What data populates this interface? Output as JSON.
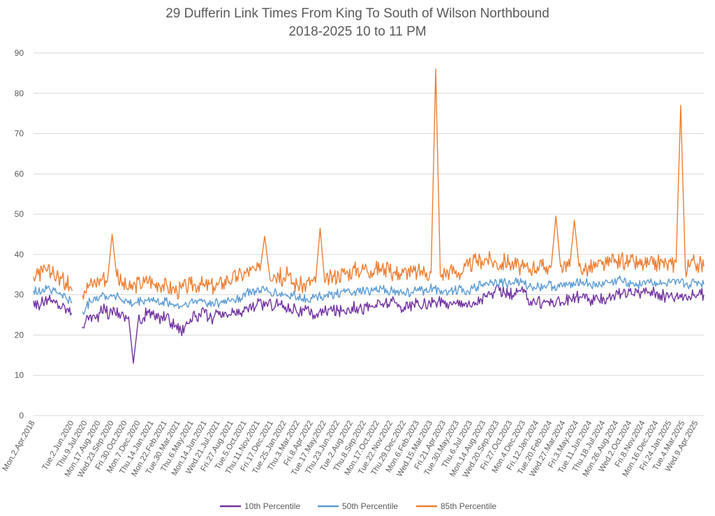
{
  "chart_data": {
    "type": "line",
    "title": "29 Dufferin Link Times From King To South of Wilson Northbound",
    "subtitle": "2018-2025 10 to 11 PM",
    "xlabel": "",
    "ylabel": "",
    "ylim": [
      0,
      90
    ],
    "yticks": [
      0,
      10,
      20,
      30,
      40,
      50,
      60,
      70,
      80,
      90
    ],
    "grid": true,
    "legend": "bottom",
    "x_tick_labels": [
      "Mon.2.Apr.2018",
      "Tue.2.Jun.2020",
      "Thu.9.Jul.2020",
      "Mon.17.Aug.2020",
      "Wed.23.Sep.2020",
      "Fri.30.Oct.2020",
      "Mon.7.Dec.2020",
      "Thu.14.Jan.2021",
      "Mon.22.Feb.2021",
      "Tue.30.Mar.2021",
      "Thu.6.May.2021",
      "Mon.14.Jun.2021",
      "Wed.21.Jul.2021",
      "Fri.27.Aug.2021",
      "Tue.5.Oct.2021",
      "Thu.11.Nov.2021",
      "Fri.17.Dec.2021",
      "Tue.25.Jan.2022",
      "Thu.3.Mar.2022",
      "Fri.8.Apr.2022",
      "Tue.17.May.2022",
      "Thu.23.Jun.2022",
      "Tue.2.Aug.2022",
      "Thu.8.Sep.2022",
      "Mon.17.Oct.2022",
      "Tue.22.Nov.2022",
      "Thu.29.Dec.2022",
      "Mon.6.Feb.2023",
      "Wed.15.Mar.2023",
      "Fri.21.Apr.2023",
      "Tue.30.May.2023",
      "Thu.6.Jul.2023",
      "Mon.14.Aug.2023",
      "Wed.20.Sep.2023",
      "Fri.27.Oct.2023",
      "Mon.4.Dec.2023",
      "Fri.12.Jan.2024",
      "Tue.20.Feb.2024",
      "Wed.27.Mar.2024",
      "Fri.3.May.2024",
      "Tue.11.Jun.2024",
      "Thu.18.Jul.2024",
      "Mon.26.Aug.2024",
      "Wed.2.Oct.2024",
      "Fri.8.Nov.2024",
      "Mon.16.Dec.2024",
      "Fri.24.Jan.2025",
      "Tue.4.Mar.2025",
      "Wed.9.Apr.2025"
    ],
    "series": [
      {
        "name": "10th Percentile",
        "color": "#7030a0",
        "values": [
          28.5,
          27.5,
          28,
          29,
          28,
          28,
          27,
          26.5,
          25.5,
          23,
          22.5,
          23.5,
          25,
          24,
          25.5,
          26.5,
          25,
          26.5,
          25.5,
          24.5,
          24.5,
          13,
          23.5,
          24,
          26,
          25,
          24,
          24.5,
          25,
          23,
          22.5,
          21,
          22.5,
          24,
          24.5,
          25,
          25.5,
          24,
          24.5,
          25,
          24.5,
          25,
          25.5,
          25,
          26,
          26.5,
          27,
          27.5,
          27.5,
          28,
          27.5,
          28,
          27.5,
          27,
          26.5,
          27,
          25.5,
          26,
          25.5,
          25,
          25.5,
          25.5,
          26.5,
          26,
          26,
          26,
          26.5,
          27,
          27,
          26.5,
          27,
          27,
          27.5,
          27.5,
          28,
          28,
          28,
          27,
          27,
          27,
          27.5,
          27.5,
          27.5,
          27.5,
          28,
          28,
          28,
          28,
          27.5,
          28,
          28.5,
          28,
          27,
          28,
          29,
          29.5,
          30,
          30.5,
          31,
          30.5,
          30.5,
          29.5,
          31,
          30.5,
          29,
          28.5,
          28.5,
          28,
          28.5,
          28,
          28.5,
          28,
          28.5,
          29,
          29.5,
          29.5,
          29,
          28.5,
          28.5,
          28.5,
          29,
          29.5,
          30,
          30,
          30.5,
          30,
          30,
          30.5,
          30.5,
          31,
          31,
          30.5,
          30,
          29.5,
          30,
          29.5,
          30,
          30,
          29.5,
          30,
          30.5,
          30
        ]
      },
      {
        "name": "50th Percentile",
        "color": "#5b9bd5",
        "values": [
          31,
          30.5,
          31.5,
          32,
          31,
          30.5,
          30,
          29,
          28,
          25.5,
          25,
          26.5,
          28.5,
          29.5,
          29.5,
          30,
          29.5,
          30,
          29.5,
          28.5,
          28,
          27.5,
          28,
          28.5,
          28.5,
          29,
          28,
          28,
          28.5,
          27.5,
          27.5,
          27,
          27.5,
          28,
          28,
          28.5,
          28.5,
          28,
          28,
          28,
          28,
          28.5,
          29,
          29,
          29,
          30.5,
          30.5,
          31,
          31,
          31,
          30.5,
          30.5,
          30,
          30,
          29.5,
          30,
          29.5,
          29,
          29,
          29,
          29.5,
          29.5,
          30,
          30,
          30.5,
          30.5,
          30.5,
          30.5,
          31,
          30.5,
          31,
          30.5,
          31,
          31,
          31.5,
          31,
          31,
          30.5,
          30.5,
          30.5,
          30.5,
          31,
          31,
          31,
          31.5,
          31.5,
          31,
          31,
          31,
          31,
          31.5,
          31.5,
          31,
          31.5,
          32,
          32.5,
          33,
          33,
          33.5,
          33,
          33,
          32.5,
          33.5,
          33,
          32.5,
          32,
          32,
          32,
          32,
          32.5,
          32,
          32,
          32,
          32.5,
          33,
          33.5,
          33,
          33,
          32.5,
          32,
          32.5,
          33,
          33,
          33,
          34,
          33,
          33,
          33,
          32.5,
          33,
          33.5,
          33,
          33,
          32.5,
          32.5,
          33,
          32.5,
          33,
          32.5,
          32.5,
          33,
          33,
          32.5
        ]
      },
      {
        "name": "85th Percentile",
        "color": "#ed7d31",
        "values": [
          34.5,
          35,
          35.5,
          36,
          35,
          34.5,
          34,
          33,
          32,
          30,
          31,
          31,
          32.5,
          33,
          33.5,
          34.5,
          33.5,
          45,
          34.5,
          33,
          32,
          31.5,
          32.5,
          33,
          33,
          34,
          32.5,
          33,
          32.5,
          32,
          31.5,
          31,
          31.5,
          32,
          32.5,
          32.5,
          33,
          32,
          32.5,
          32,
          32.5,
          33,
          34,
          34,
          34.5,
          35,
          35.5,
          36,
          36,
          36,
          44.5,
          35.5,
          35,
          35,
          34,
          35,
          33,
          32.5,
          32.5,
          32.5,
          33.5,
          33,
          46.5,
          33,
          34,
          34.5,
          35,
          35.5,
          35.5,
          36,
          36.5,
          36,
          37,
          36,
          36.5,
          36.5,
          36.5,
          35.5,
          35.5,
          35.5,
          35.5,
          36,
          35.5,
          35.5,
          36,
          35.5,
          35.5,
          86,
          35,
          35.5,
          36,
          36,
          35.5,
          36,
          37,
          38,
          38.5,
          38.5,
          39,
          38.5,
          38,
          37.5,
          38.5,
          38,
          37.5,
          37,
          36.5,
          36.5,
          37,
          37,
          37,
          37,
          37,
          49.5,
          37,
          38,
          37,
          48.5,
          37,
          36.5,
          36.5,
          37,
          37,
          37.5,
          37.5,
          38,
          38,
          38.5,
          38,
          38,
          38,
          37.5,
          37.5,
          37.5,
          37.5,
          38,
          38,
          37.5,
          37.5,
          38,
          77,
          36.5,
          37,
          38,
          37.5,
          37
        ]
      }
    ],
    "spikes": [
      {
        "series": "10th Percentile",
        "date": "Wed.23.Sep.2020",
        "value": 13
      },
      {
        "series": "85th Percentile",
        "date": "Mon.17.Aug.2020",
        "value": 45
      },
      {
        "series": "85th Percentile",
        "date": "Tue.5.Oct.2021",
        "value": 44.5
      },
      {
        "series": "85th Percentile",
        "date": "Thu.3.Mar.2022",
        "value": 46.5
      },
      {
        "series": "85th Percentile",
        "date": "Mon.6.Feb.2023",
        "value": 86
      },
      {
        "series": "85th Percentile",
        "date": "Fri.12.Jan.2024",
        "value": 49.5
      },
      {
        "series": "85th Percentile",
        "date": "Wed.27.Mar.2024",
        "value": 48.5
      },
      {
        "series": "85th Percentile",
        "date": "Tue.4.Mar.2025",
        "value": 77
      }
    ]
  }
}
